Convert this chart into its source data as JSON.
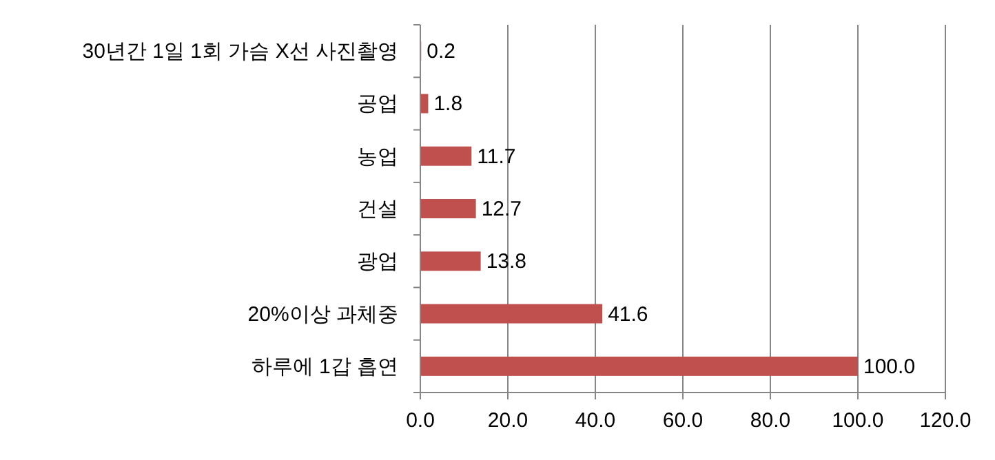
{
  "chart_data": {
    "type": "bar",
    "orientation": "horizontal",
    "categories": [
      "30년간 1일 1회 가슴 X선 사진촬영",
      "공업",
      "농업",
      "건설",
      "광업",
      "20%이상 과체중",
      "하루에 1갑 흡연"
    ],
    "values": [
      0.2,
      1.8,
      11.7,
      12.7,
      13.8,
      41.6,
      100.0
    ],
    "color": "#c0504d",
    "xlim": [
      0,
      120
    ],
    "xticks": [
      {
        "value": 0,
        "label": "0.0"
      },
      {
        "value": 20,
        "label": "20.0"
      },
      {
        "value": 40,
        "label": "40.0"
      },
      {
        "value": 60,
        "label": "60.0"
      },
      {
        "value": 80,
        "label": "80.0"
      },
      {
        "value": 100,
        "label": "100.0"
      },
      {
        "value": 120,
        "label": "120.0"
      }
    ],
    "value_labels": [
      "0.2",
      "1.8",
      "11.7",
      "12.7",
      "13.8",
      "41.6",
      "100.0"
    ],
    "grid": "x"
  }
}
